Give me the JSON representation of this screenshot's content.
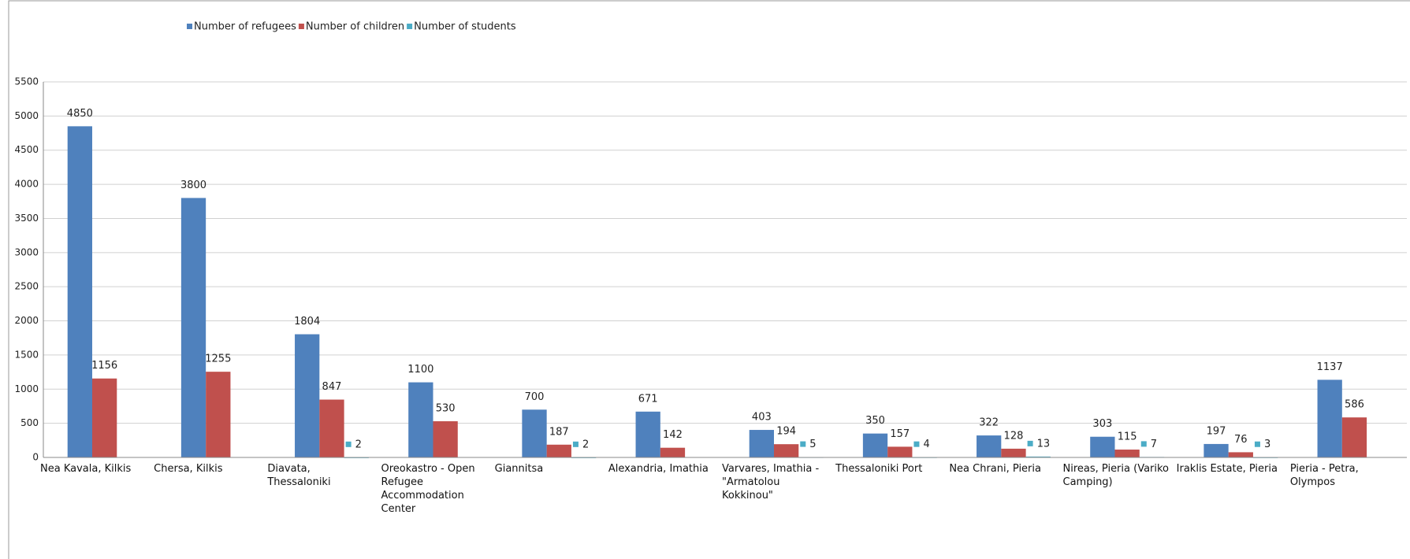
{
  "chart_data": {
    "type": "bar",
    "categories": [
      "Nea Kavala, Kilkis",
      "Chersa, Kilkis",
      "Diavata, Thessaloniki",
      "Oreokastro - Open Refugee Accommodation Center",
      "Giannitsa",
      "Alexandria, Imathia",
      "Varvares, Imathia - \"Armatolou Kokkinou\"",
      "Thessaloniki Port",
      "Nea Chrani, Pieria",
      "Nireas, Pieria (Variko Camping)",
      "Iraklis Estate, Pieria",
      "Pieria - Petra, Olympos"
    ],
    "series": [
      {
        "name": "Number of refugees",
        "color": "#4f81bd",
        "values": [
          4850,
          3800,
          1804,
          1100,
          700,
          671,
          403,
          350,
          322,
          303,
          197,
          1137
        ]
      },
      {
        "name": "Number of children",
        "color": "#c0504d",
        "values": [
          1156,
          1255,
          847,
          530,
          187,
          142,
          194,
          157,
          128,
          115,
          76,
          586
        ]
      },
      {
        "name": "Number of students",
        "color": "#4bacc6",
        "values": [
          null,
          null,
          2,
          null,
          2,
          null,
          5,
          4,
          13,
          7,
          3,
          null
        ]
      }
    ],
    "ylim": [
      0,
      5500
    ],
    "yticks": [
      0,
      500,
      1000,
      1500,
      2000,
      2500,
      3000,
      3500,
      4000,
      4500,
      5000,
      5500
    ],
    "grid": true,
    "legend": "top"
  }
}
